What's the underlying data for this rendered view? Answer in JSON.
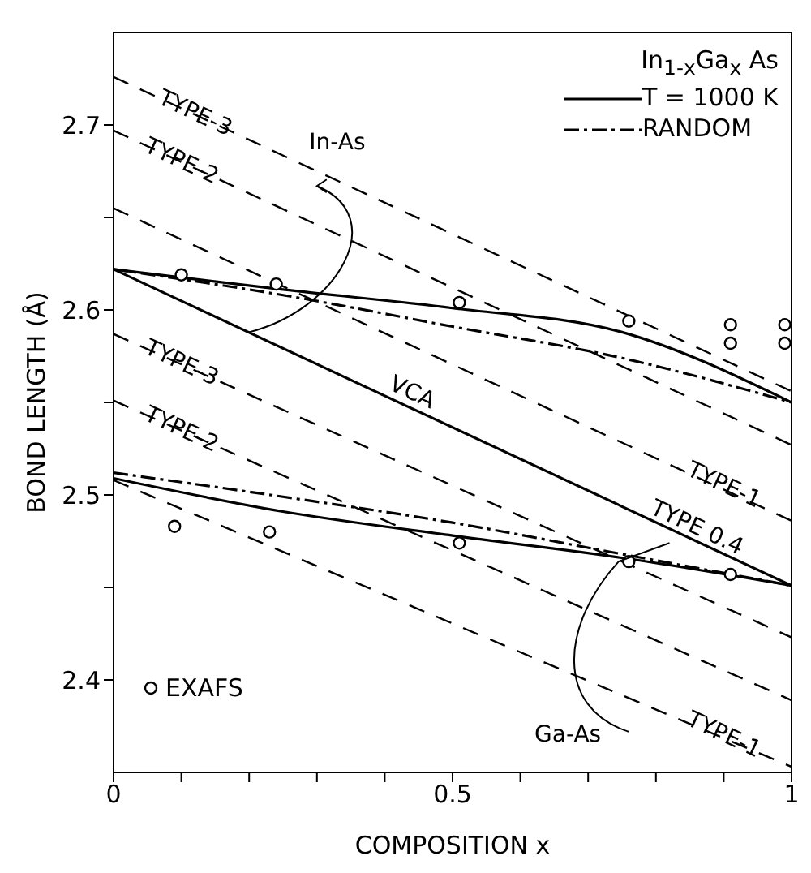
{
  "chart_data": {
    "type": "line",
    "xlabel": "COMPOSITION x",
    "ylabel": "BOND LENGTH (Å)",
    "legend_title": "In$_{1-x}$Ga$_{x}$ As",
    "legend": "top right",
    "grid": false,
    "xlim": [
      0,
      1
    ],
    "xticks": [
      0,
      {
        "value": 0.1,
        "label": null
      },
      {
        "value": 0.2,
        "label": null
      },
      {
        "value": 0.3,
        "label": null
      },
      {
        "value": 0.4,
        "label": null
      },
      0.5,
      {
        "value": 0.6,
        "label": null
      },
      {
        "value": 0.7,
        "label": null
      },
      {
        "value": 0.8,
        "label": null
      },
      {
        "value": 0.9,
        "label": null
      },
      1
    ],
    "ylim": [
      2.35,
      2.75
    ],
    "yticks": [
      2.4,
      {
        "value": 2.45,
        "label": null
      },
      2.5,
      {
        "value": 2.55,
        "label": null
      },
      2.6,
      {
        "value": 2.65,
        "label": null
      },
      2.7
    ],
    "series": [
      {
        "name": "T = 1000 K",
        "color": "#000000",
        "line_style": "solid",
        "x": [
          0,
          0.25,
          0.5,
          0.75,
          1
        ],
        "values": [
          2.622,
          2.611,
          2.601,
          2.588,
          2.55
        ]
      },
      {
        "name": "RANDOM",
        "color": "#000000",
        "line_style": "dashdot",
        "x": [
          0,
          0.25,
          0.5,
          0.75,
          1
        ],
        "values": [
          2.622,
          2.608,
          2.591,
          2.574,
          2.55
        ]
      },
      {
        "color": "#000000",
        "line_style": "solid",
        "x": [
          0,
          0.25,
          0.5,
          0.75,
          1
        ],
        "values": [
          2.509,
          2.491,
          2.478,
          2.466,
          2.451
        ]
      },
      {
        "color": "#000000",
        "line_style": "dashdot",
        "x": [
          0,
          0.25,
          0.5,
          0.75,
          1
        ],
        "values": [
          2.512,
          2.499,
          2.485,
          2.468,
          2.451
        ]
      },
      {
        "color": "#000000",
        "line_style": "solid",
        "x": [
          0,
          1
        ],
        "values": [
          2.622,
          2.451
        ]
      },
      {
        "color": "#000000",
        "line_style": "dashed",
        "x": [
          0,
          1
        ],
        "values": [
          2.726,
          2.556
        ]
      },
      {
        "color": "#000000",
        "line_style": "dashed",
        "x": [
          0,
          1
        ],
        "values": [
          2.697,
          2.527
        ]
      },
      {
        "color": "#000000",
        "line_style": "dashed",
        "x": [
          0,
          1
        ],
        "values": [
          2.655,
          2.486
        ]
      },
      {
        "color": "#000000",
        "line_style": "dashed",
        "x": [
          0,
          1
        ],
        "values": [
          2.587,
          2.423
        ]
      },
      {
        "color": "#000000",
        "line_style": "dashed",
        "x": [
          0,
          1
        ],
        "values": [
          2.551,
          2.389
        ]
      },
      {
        "color": "#000000",
        "line_style": "dashed",
        "x": [
          0,
          1
        ],
        "values": [
          2.508,
          2.353
        ]
      },
      {
        "name": "EXAFS",
        "type": "scatter",
        "marker": "circle",
        "color": "#000000",
        "x": [
          0.1,
          0.24,
          0.51,
          0.76,
          0.91,
          0.91,
          0.99,
          0.99,
          0.09,
          0.23,
          0.51,
          0.76,
          0.91
        ],
        "values": [
          2.619,
          2.614,
          2.604,
          2.594,
          2.592,
          2.582,
          2.592,
          2.582,
          2.483,
          2.48,
          2.474,
          2.464,
          2.457
        ]
      }
    ],
    "annotations": [
      "In-As",
      "Ga-As",
      "VCA",
      "TYPE 0.4",
      {
        "text": "TYPE-3",
        "x": 0.12,
        "y": 2.706
      },
      {
        "text": "TYPE-2",
        "x": 0.1,
        "y": 2.68
      },
      {
        "text": "TYPE-1",
        "x": 0.9,
        "y": 2.505
      },
      {
        "text": "TYPE-3",
        "x": 0.1,
        "y": 2.571
      },
      {
        "text": "TYPE-2",
        "x": 0.1,
        "y": 2.535
      },
      {
        "text": "TYPE-1",
        "x": 0.9,
        "y": 2.37
      }
    ]
  }
}
